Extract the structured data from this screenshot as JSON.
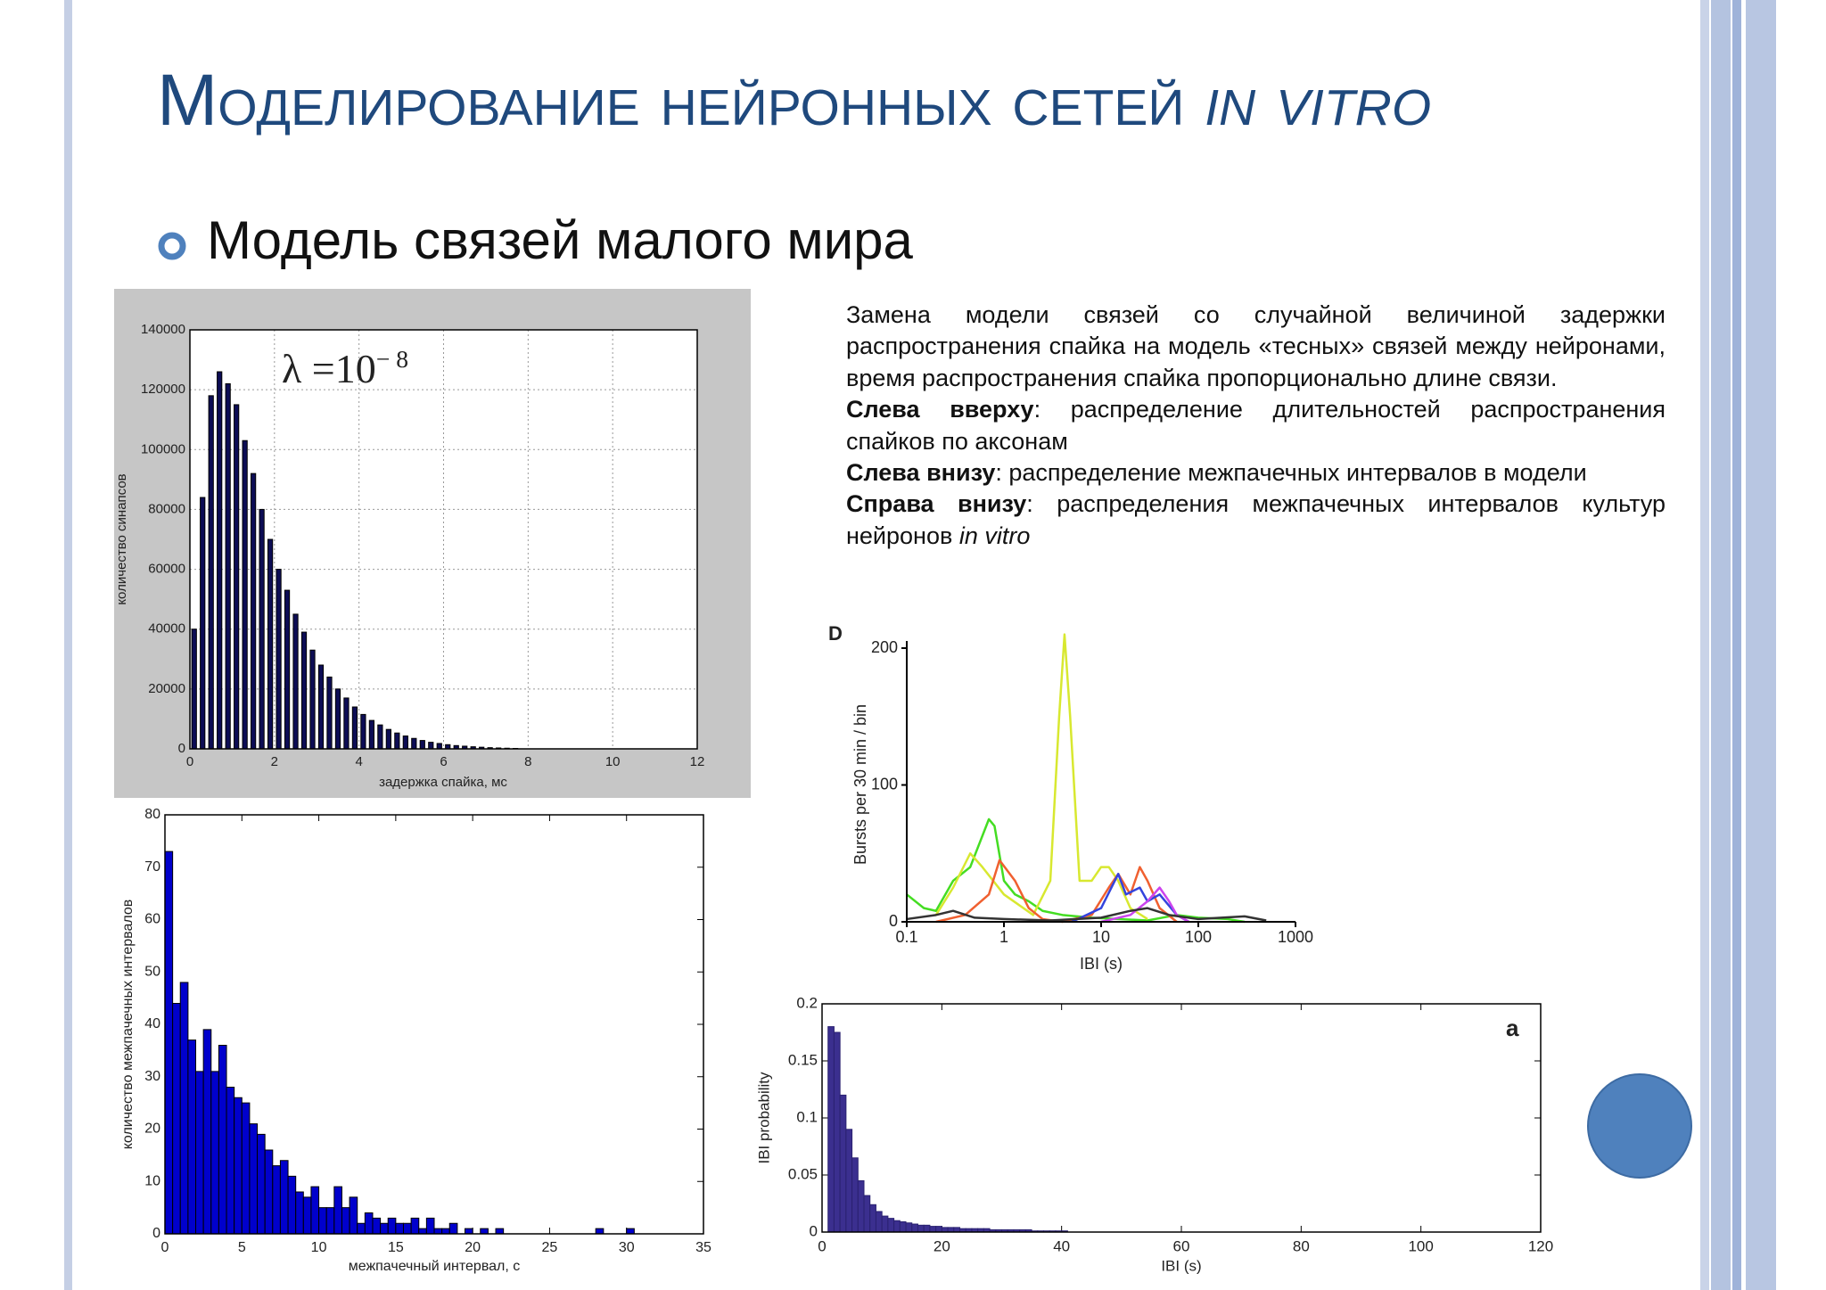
{
  "header": {
    "title": "Моделирование нейронных сетей",
    "title_italic": "in vitro",
    "bullet": "Модель связей малого мира"
  },
  "description": [
    {
      "text": "Замена модели связей со случайной величиной задержки распространения спайка на модель «тесных» связей между нейронами, время распространения спайка пропорционально длине связи."
    },
    {
      "label": "Слева вверху",
      "text": ": распределение длительностей распространения спайков по аксонам"
    },
    {
      "label": "Слева внизу",
      "text": ": распределение межпачечных интервалов в модели"
    },
    {
      "label": "Справа внизу",
      "text": ": распределения межпачечных интервалов культур нейронов ",
      "emphasis": "in vitro"
    }
  ],
  "chart_data": [
    {
      "type": "histogram",
      "color": "#0d0d55",
      "grid": true,
      "annotation": "λ =10",
      "annotation_exponent": "− 8",
      "xlabel": "задержка спайка, мс",
      "ylabel": "количество синапсов",
      "bins": [
        0,
        0.2,
        0.4,
        0.6,
        0.8,
        1,
        1.2,
        1.4,
        1.6,
        1.8,
        2,
        2.2,
        2.4,
        2.6,
        2.8,
        3,
        3.2,
        3.4,
        3.6,
        3.8,
        4,
        4.2,
        4.4,
        4.6,
        4.8,
        5,
        5.2,
        5.4,
        5.6,
        5.8,
        6,
        6.2,
        6.4,
        6.6,
        6.8,
        7,
        7.2,
        7.4,
        7.6,
        7.8
      ],
      "counts": [
        40000,
        84000,
        118000,
        126000,
        122000,
        115000,
        103000,
        92000,
        80000,
        70000,
        60000,
        53000,
        45000,
        39000,
        33000,
        28000,
        24000,
        20000,
        17000,
        14000,
        11500,
        9500,
        8000,
        6500,
        5300,
        4300,
        3500,
        2800,
        2200,
        1800,
        1400,
        1100,
        900,
        700,
        550,
        400,
        300,
        220,
        150
      ],
      "xlim": [
        0,
        12
      ],
      "xticks": [
        0,
        2,
        4,
        6,
        8,
        10,
        12
      ],
      "ylim": [
        0,
        140000
      ],
      "yticks": [
        0,
        20000,
        40000,
        60000,
        80000,
        100000,
        120000,
        140000
      ]
    },
    {
      "type": "histogram",
      "color": "#0000cc",
      "grid": false,
      "xlabel": "межпачечный интервал, с",
      "ylabel": "количество межпачечных интервалов",
      "bins": [
        0,
        0.5,
        1,
        1.5,
        2,
        2.5,
        3,
        3.5,
        4,
        4.5,
        5,
        5.5,
        6,
        6.5,
        7,
        7.5,
        8,
        8.5,
        9,
        9.5,
        10,
        10.5,
        11,
        11.5,
        12,
        12.5,
        13,
        13.5,
        14,
        14.5,
        15,
        15.5,
        16,
        16.5,
        17,
        17.5,
        18,
        18.5,
        19,
        19.5,
        20,
        20.5,
        21,
        21.5,
        22,
        22.5,
        23,
        23.5,
        24,
        24.5,
        25,
        25.5,
        26,
        26.5,
        27,
        27.5,
        28,
        28.5,
        29,
        29.5,
        30,
        30.5
      ],
      "counts": [
        73,
        44,
        48,
        37,
        31,
        39,
        31,
        36,
        28,
        26,
        25,
        21,
        19,
        16,
        13,
        14,
        11,
        8,
        7,
        9,
        5,
        5,
        9,
        5,
        7,
        2,
        4,
        3,
        2,
        3,
        2,
        2,
        3,
        1,
        3,
        1,
        1,
        2,
        0,
        1,
        0,
        1,
        0,
        1,
        0,
        0,
        0,
        0,
        0,
        0,
        0,
        0,
        0,
        0,
        0,
        0,
        1,
        0,
        0,
        0,
        1
      ],
      "xlim": [
        0,
        35
      ],
      "xticks": [
        0,
        5,
        10,
        15,
        20,
        25,
        30,
        35
      ],
      "ylim": [
        0,
        80
      ],
      "yticks": [
        0,
        10,
        20,
        30,
        40,
        50,
        60,
        70,
        80
      ]
    },
    {
      "type": "line",
      "xlog": true,
      "grid": false,
      "annotation": "D",
      "xlabel": "IBI (s)",
      "ylabel": "Bursts per 30 min / bin",
      "xlim": [
        0.1,
        1000
      ],
      "xticks": [
        0.1,
        1,
        10,
        100,
        1000
      ],
      "ylim": [
        0,
        200
      ],
      "yticks": [
        0,
        100,
        200
      ],
      "series": [
        {
          "color": "#44dd22",
          "x": [
            0.1,
            0.15,
            0.2,
            0.3,
            0.45,
            0.7,
            0.8,
            1,
            1.3,
            1.8,
            2.5,
            4,
            8,
            15,
            30,
            60,
            100,
            200,
            300
          ],
          "values": [
            20,
            10,
            8,
            30,
            40,
            75,
            70,
            30,
            20,
            15,
            8,
            5,
            3,
            2,
            1,
            5,
            3,
            2,
            0
          ]
        },
        {
          "color": "#d8e830",
          "x": [
            0.2,
            0.3,
            0.45,
            0.6,
            1,
            2,
            3,
            3.7,
            4.2,
            4.8,
            6,
            8,
            10,
            12,
            15,
            20,
            30
          ],
          "values": [
            5,
            25,
            50,
            40,
            20,
            5,
            30,
            150,
            210,
            150,
            30,
            30,
            40,
            40,
            30,
            10,
            2
          ]
        },
        {
          "color": "#f06030",
          "x": [
            0.2,
            0.4,
            0.7,
            0.9,
            1.3,
            1.8,
            2.5,
            4,
            8,
            12,
            15,
            20,
            25,
            30,
            40,
            60
          ],
          "values": [
            0,
            5,
            20,
            45,
            30,
            10,
            2,
            0,
            5,
            25,
            35,
            20,
            40,
            30,
            10,
            0
          ]
        },
        {
          "color": "#3344dd",
          "x": [
            5,
            10,
            15,
            18,
            25,
            30,
            40,
            60,
            80
          ],
          "values": [
            0,
            10,
            35,
            20,
            25,
            15,
            20,
            5,
            0
          ]
        },
        {
          "color": "#cc44ee",
          "x": [
            10,
            20,
            30,
            40,
            50,
            60,
            80
          ],
          "values": [
            0,
            5,
            15,
            25,
            15,
            5,
            0
          ]
        },
        {
          "color": "#333333",
          "x": [
            0.1,
            0.2,
            0.3,
            0.5,
            1,
            3,
            10,
            20,
            30,
            50,
            100,
            300,
            500
          ],
          "values": [
            2,
            5,
            8,
            3,
            2,
            1,
            3,
            8,
            10,
            5,
            2,
            4,
            1
          ]
        }
      ]
    },
    {
      "type": "histogram",
      "color": "#3b2f8f",
      "grid": false,
      "annotation": "a",
      "xlabel": "IBI (s)",
      "ylabel": "IBI probability",
      "bins": [
        1,
        2,
        3,
        4,
        5,
        6,
        7,
        8,
        9,
        10,
        11,
        12,
        13,
        14,
        15,
        16,
        17,
        18,
        19,
        20,
        21,
        22,
        23,
        24,
        25,
        26,
        27,
        28,
        29,
        30,
        31,
        32,
        33,
        34,
        35,
        36,
        37,
        38,
        39,
        40,
        41
      ],
      "counts": [
        0.18,
        0.175,
        0.12,
        0.09,
        0.065,
        0.045,
        0.032,
        0.024,
        0.018,
        0.014,
        0.012,
        0.01,
        0.009,
        0.008,
        0.007,
        0.006,
        0.006,
        0.005,
        0.005,
        0.004,
        0.004,
        0.004,
        0.003,
        0.003,
        0.003,
        0.003,
        0.003,
        0.002,
        0.002,
        0.002,
        0.002,
        0.002,
        0.002,
        0.002,
        0.001,
        0.001,
        0.001,
        0.001,
        0.001,
        0.001
      ],
      "xlim": [
        0,
        120
      ],
      "xticks": [
        0,
        20,
        40,
        60,
        80,
        100,
        120
      ],
      "ylim": [
        0,
        0.2
      ],
      "yticks": [
        0,
        0.05,
        0.1,
        0.15,
        0.2
      ]
    }
  ]
}
